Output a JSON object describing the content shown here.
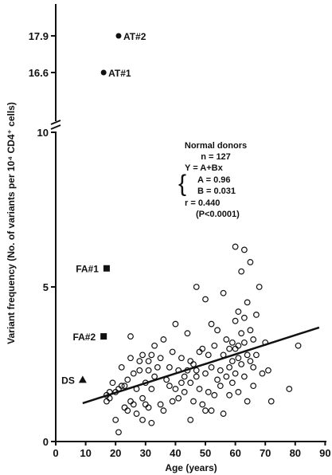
{
  "chart_data": {
    "type": "scatter",
    "title": "",
    "xlabel": "Age (years)",
    "ylabel": "Variant frequency (No. of variants per 10⁴ CD4⁺ cells)",
    "xlim": [
      0,
      90
    ],
    "ylim": [
      0,
      10
    ],
    "y_axis_break": {
      "from": 10,
      "to": 16.6
    },
    "x_ticks": [
      "0",
      "10",
      "20",
      "30",
      "40",
      "50",
      "60",
      "70",
      "80",
      "90"
    ],
    "y_ticks": [
      "0",
      "5",
      "10"
    ],
    "y_ticks_upper": [
      "16.6",
      "17.9"
    ],
    "grid": false,
    "annotation": {
      "heading": "Normal donors",
      "n": "n = 127",
      "model": "Y = A+Bx",
      "a": "A = 0.96",
      "b": "B = 0.031",
      "r": "r = 0.440",
      "p": "(P<0.0001)"
    },
    "regression": {
      "intercept": 0.96,
      "slope": 0.031,
      "x_range": [
        9,
        88
      ]
    },
    "special_points": [
      {
        "label": "AT#2",
        "x": 21,
        "y": 17.9,
        "marker": "filled-circle"
      },
      {
        "label": "AT#1",
        "x": 16,
        "y": 16.6,
        "marker": "filled-circle"
      },
      {
        "label": "FA#1",
        "x": 17,
        "y": 5.6,
        "marker": "filled-square"
      },
      {
        "label": "FA#2",
        "x": 16,
        "y": 3.4,
        "marker": "filled-square"
      },
      {
        "label": "DS",
        "x": 9,
        "y": 2.0,
        "marker": "filled-triangle"
      }
    ],
    "series": [
      {
        "marker": "open-circle",
        "points": [
          [
            17,
            1.3
          ],
          [
            17,
            1.5
          ],
          [
            18,
            1.4
          ],
          [
            18,
            1.6
          ],
          [
            19,
            1.9
          ],
          [
            20,
            0.7
          ],
          [
            20,
            1.6
          ],
          [
            21,
            0.3
          ],
          [
            21,
            1.7
          ],
          [
            22,
            1.8
          ],
          [
            22,
            2.4
          ],
          [
            23,
            1.1
          ],
          [
            23,
            1.8
          ],
          [
            24,
            1.0
          ],
          [
            24,
            2.0
          ],
          [
            25,
            1.3
          ],
          [
            25,
            2.7
          ],
          [
            25,
            3.4
          ],
          [
            26,
            1.2
          ],
          [
            26,
            2.2
          ],
          [
            27,
            0.9
          ],
          [
            27,
            1.7
          ],
          [
            28,
            2.3
          ],
          [
            28,
            2.6
          ],
          [
            29,
            0.7
          ],
          [
            29,
            1.4
          ],
          [
            29,
            2.8
          ],
          [
            30,
            1.2
          ],
          [
            30,
            1.9
          ],
          [
            31,
            1.1
          ],
          [
            31,
            2.3
          ],
          [
            31,
            2.6
          ],
          [
            32,
            0.6
          ],
          [
            32,
            1.7
          ],
          [
            32,
            2.8
          ],
          [
            33,
            2.1
          ],
          [
            33,
            3.1
          ],
          [
            34,
            2.4
          ],
          [
            35,
            1.2
          ],
          [
            35,
            2.7
          ],
          [
            36,
            1.0
          ],
          [
            36,
            3.3
          ],
          [
            37,
            2.0
          ],
          [
            38,
            1.8
          ],
          [
            38,
            2.4
          ],
          [
            39,
            1.3
          ],
          [
            39,
            2.9
          ],
          [
            40,
            1.7
          ],
          [
            40,
            3.8
          ],
          [
            41,
            2.3
          ],
          [
            41,
            1.4
          ],
          [
            42,
            2.7
          ],
          [
            42,
            1.9
          ],
          [
            43,
            1.6
          ],
          [
            43,
            2.1
          ],
          [
            44,
            2.3
          ],
          [
            44,
            3.5
          ],
          [
            45,
            1.9
          ],
          [
            45,
            2.6
          ],
          [
            45,
            0.7
          ],
          [
            46,
            2.5
          ],
          [
            46,
            1.3
          ],
          [
            47,
            5.0
          ],
          [
            47,
            2.1
          ],
          [
            47,
            2.3
          ],
          [
            48,
            1.7
          ],
          [
            48,
            2.9
          ],
          [
            49,
            1.2
          ],
          [
            49,
            3.0
          ],
          [
            50,
            4.6
          ],
          [
            50,
            2.2
          ],
          [
            50,
            1.0
          ],
          [
            51,
            2.8
          ],
          [
            51,
            1.6
          ],
          [
            52,
            3.8
          ],
          [
            52,
            2.4
          ],
          [
            52,
            1.0
          ],
          [
            53,
            3.1
          ],
          [
            53,
            1.5
          ],
          [
            54,
            2.0
          ],
          [
            54,
            3.6
          ],
          [
            55,
            2.3
          ],
          [
            55,
            1.8
          ],
          [
            56,
            4.8
          ],
          [
            56,
            2.8
          ],
          [
            56,
            0.9
          ],
          [
            57,
            2.1
          ],
          [
            57,
            3.3
          ],
          [
            58,
            3.0
          ],
          [
            58,
            1.5
          ],
          [
            58,
            2.4
          ],
          [
            59,
            3.2
          ],
          [
            59,
            2.6
          ],
          [
            59,
            1.9
          ],
          [
            60,
            6.3
          ],
          [
            60,
            3.9
          ],
          [
            60,
            3.0
          ],
          [
            60,
            2.2
          ],
          [
            61,
            4.2
          ],
          [
            61,
            3.1
          ],
          [
            61,
            2.7
          ],
          [
            61,
            1.6
          ],
          [
            62,
            5.5
          ],
          [
            62,
            3.5
          ],
          [
            62,
            2.5
          ],
          [
            63,
            6.2
          ],
          [
            63,
            4.0
          ],
          [
            63,
            3.2
          ],
          [
            63,
            2.1
          ],
          [
            64,
            4.5
          ],
          [
            64,
            2.8
          ],
          [
            64,
            1.3
          ],
          [
            65,
            5.8
          ],
          [
            65,
            3.6
          ],
          [
            65,
            2.6
          ],
          [
            66,
            3.3
          ],
          [
            66,
            2.4
          ],
          [
            66,
            1.8
          ],
          [
            67,
            4.1
          ],
          [
            67,
            2.8
          ],
          [
            68,
            5.0
          ],
          [
            69,
            2.2
          ],
          [
            70,
            3.2
          ],
          [
            71,
            2.3
          ],
          [
            72,
            1.3
          ],
          [
            78,
            1.7
          ],
          [
            81,
            3.1
          ]
        ]
      }
    ]
  }
}
